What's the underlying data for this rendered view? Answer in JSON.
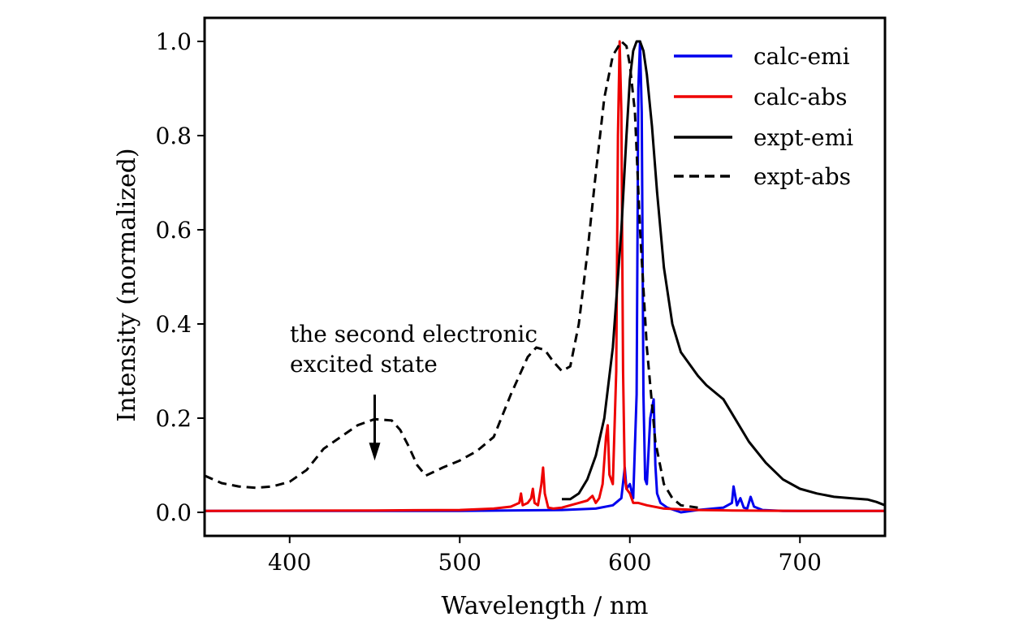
{
  "chart_data": {
    "type": "line",
    "title": "",
    "xlabel": "Wavelength / nm",
    "ylabel": "Intensity (normalized)",
    "xlim": [
      350,
      750
    ],
    "ylim": [
      -0.05,
      1.05
    ],
    "x_ticks": [
      400,
      500,
      600,
      700
    ],
    "x_tick_labels": [
      "400",
      "500",
      "600",
      "700"
    ],
    "y_ticks": [
      0.0,
      0.2,
      0.4,
      0.6,
      0.8,
      1.0
    ],
    "y_tick_labels": [
      "0.0",
      "0.2",
      "0.4",
      "0.6",
      "0.8",
      "1.0"
    ],
    "grid": false,
    "legend_position": "top-right",
    "annotation": {
      "lines": [
        "the second electronic",
        "excited state"
      ],
      "arrow_x": 450,
      "arrow_from_y": 0.25,
      "arrow_to_y": 0.11
    },
    "series": [
      {
        "name": "calc-emi",
        "color": "#0000ee",
        "style": "solid",
        "x": [
          350,
          500,
          560,
          580,
          590,
          595,
          597,
          598,
          600,
          602,
          604,
          605,
          606,
          607,
          608,
          609,
          610,
          612,
          614,
          615,
          616,
          618,
          622,
          630,
          640,
          655,
          660,
          661,
          663,
          665,
          667,
          669,
          671,
          673,
          678,
          690,
          720,
          750
        ],
        "y": [
          0.003,
          0.003,
          0.005,
          0.008,
          0.015,
          0.03,
          0.095,
          0.05,
          0.06,
          0.03,
          0.25,
          0.9,
          1.0,
          0.85,
          0.25,
          0.07,
          0.06,
          0.2,
          0.24,
          0.1,
          0.04,
          0.02,
          0.01,
          0.0,
          0.005,
          0.01,
          0.02,
          0.055,
          0.015,
          0.03,
          0.01,
          0.008,
          0.033,
          0.012,
          0.005,
          0.003,
          0.003,
          0.003
        ]
      },
      {
        "name": "calc-abs",
        "color": "#ee0000",
        "style": "solid",
        "x": [
          350,
          450,
          500,
          520,
          530,
          535,
          536,
          537,
          540,
          542,
          543,
          544,
          546,
          548,
          549,
          550,
          552,
          555,
          560,
          565,
          570,
          575,
          578,
          580,
          582,
          584,
          586,
          587,
          588,
          590,
          592,
          593,
          594,
          595,
          596,
          597,
          598,
          600,
          602,
          605,
          610,
          620,
          640,
          660,
          700,
          750
        ],
        "y": [
          0.003,
          0.004,
          0.005,
          0.008,
          0.012,
          0.02,
          0.04,
          0.015,
          0.02,
          0.03,
          0.05,
          0.02,
          0.015,
          0.06,
          0.095,
          0.04,
          0.01,
          0.008,
          0.01,
          0.015,
          0.02,
          0.025,
          0.035,
          0.02,
          0.03,
          0.06,
          0.16,
          0.185,
          0.08,
          0.06,
          0.3,
          0.8,
          1.0,
          0.85,
          0.3,
          0.075,
          0.05,
          0.04,
          0.02,
          0.02,
          0.015,
          0.008,
          0.005,
          0.004,
          0.003,
          0.003
        ]
      },
      {
        "name": "expt-emi",
        "color": "#000000",
        "style": "solid",
        "x": [
          560,
          565,
          570,
          575,
          580,
          585,
          590,
          595,
          598,
          600,
          602,
          604,
          606,
          608,
          610,
          613,
          616,
          620,
          625,
          630,
          640,
          645,
          650,
          655,
          660,
          670,
          680,
          690,
          700,
          710,
          720,
          730,
          740,
          745,
          750
        ],
        "y": [
          0.028,
          0.028,
          0.04,
          0.07,
          0.12,
          0.2,
          0.35,
          0.6,
          0.8,
          0.92,
          0.98,
          1.0,
          1.0,
          0.98,
          0.93,
          0.82,
          0.68,
          0.52,
          0.4,
          0.34,
          0.29,
          0.27,
          0.255,
          0.24,
          0.21,
          0.15,
          0.105,
          0.07,
          0.05,
          0.04,
          0.033,
          0.03,
          0.027,
          0.022,
          0.015
        ]
      },
      {
        "name": "expt-abs",
        "color": "#000000",
        "style": "dashed",
        "x": [
          350,
          360,
          370,
          380,
          390,
          400,
          410,
          420,
          430,
          440,
          450,
          460,
          465,
          470,
          475,
          480,
          490,
          500,
          510,
          520,
          530,
          540,
          545,
          550,
          555,
          560,
          565,
          570,
          575,
          580,
          585,
          590,
          595,
          598,
          600,
          603,
          606,
          610,
          615,
          620,
          625,
          630,
          640
        ],
        "y": [
          0.078,
          0.062,
          0.055,
          0.052,
          0.055,
          0.065,
          0.09,
          0.135,
          0.16,
          0.185,
          0.198,
          0.195,
          0.175,
          0.14,
          0.1,
          0.078,
          0.095,
          0.11,
          0.13,
          0.16,
          0.25,
          0.33,
          0.35,
          0.345,
          0.32,
          0.3,
          0.31,
          0.4,
          0.55,
          0.72,
          0.88,
          0.97,
          1.0,
          0.99,
          0.95,
          0.85,
          0.6,
          0.35,
          0.15,
          0.06,
          0.03,
          0.015,
          0.01
        ]
      }
    ]
  }
}
